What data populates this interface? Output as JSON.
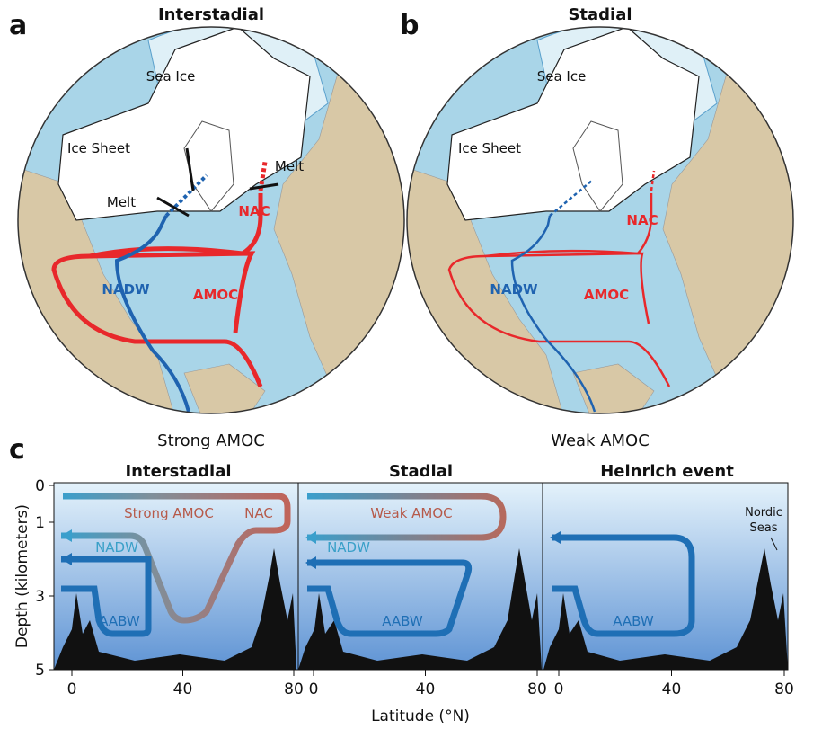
{
  "panels": [
    {
      "letter": "a",
      "title": "Interstadial",
      "sea_ice": "Sea Ice",
      "ice_sheet": "Ice Sheet",
      "melt": [
        "Melt",
        "Melt"
      ],
      "nac": "NAC",
      "nadw": "NADW",
      "amoc": "AMOC",
      "caption": "Strong AMOC"
    },
    {
      "letter": "b",
      "title": "Stadial",
      "sea_ice": "Sea Ice",
      "ice_sheet": "Ice Sheet",
      "nac": "NAC",
      "nadw": "NADW",
      "amoc": "AMOC",
      "caption": "Weak AMOC"
    }
  ],
  "section_c": {
    "letter": "c",
    "y_label": "Depth (kilometers)",
    "x_label": "Latitude (°N)",
    "y_ticks": [
      0,
      1,
      3,
      5
    ],
    "panels": [
      {
        "title": "Interstadial",
        "x_ticks": [
          0,
          40,
          80
        ],
        "labels": [
          "Strong AMOC",
          "NAC",
          "NADW",
          "AABW"
        ]
      },
      {
        "title": "Stadial",
        "x_ticks": [
          0,
          40,
          80
        ],
        "labels": [
          "Weak AMOC",
          "NADW",
          "AABW"
        ]
      },
      {
        "title": "Heinrich event",
        "x_ticks": [
          0,
          40,
          80
        ],
        "labels": [
          "AABW"
        ],
        "note": [
          "Nordic",
          "Seas"
        ]
      }
    ]
  }
}
